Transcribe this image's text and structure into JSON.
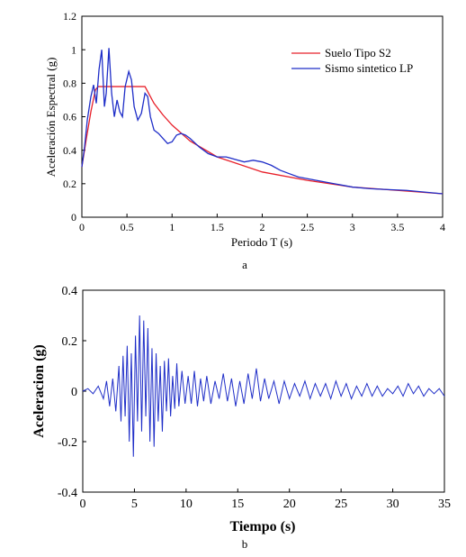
{
  "chart_data": [
    {
      "type": "line",
      "title": "",
      "xlabel": "Periodo T (s)",
      "ylabel": "Aceleración Espectral (g)",
      "xlim": [
        0,
        4
      ],
      "ylim": [
        0,
        1.2
      ],
      "xticks": [
        "0",
        "0.5",
        "1",
        "1.5",
        "2",
        "2.5",
        "3",
        "3.5",
        "4"
      ],
      "yticks": [
        "0",
        "0.2",
        "0.4",
        "0.6",
        "0.8",
        "1",
        "1.2"
      ],
      "panel_label": "a",
      "legend_position": "top-right",
      "series": [
        {
          "name": "Suelo Tipo S2",
          "color": "#e8202a",
          "x": [
            0,
            0.05,
            0.1,
            0.15,
            0.18,
            0.7,
            0.8,
            0.9,
            1.0,
            1.2,
            1.5,
            2.0,
            2.5,
            3.0,
            3.5,
            4.0
          ],
          "y": [
            0.3,
            0.47,
            0.63,
            0.76,
            0.78,
            0.78,
            0.68,
            0.61,
            0.55,
            0.455,
            0.36,
            0.27,
            0.22,
            0.18,
            0.16,
            0.14
          ]
        },
        {
          "name": "Sismo sintetico LP",
          "color": "#1f2ec8",
          "x": [
            0,
            0.03,
            0.06,
            0.1,
            0.13,
            0.16,
            0.19,
            0.22,
            0.25,
            0.27,
            0.3,
            0.33,
            0.36,
            0.39,
            0.42,
            0.45,
            0.48,
            0.52,
            0.55,
            0.58,
            0.62,
            0.66,
            0.7,
            0.73,
            0.76,
            0.8,
            0.85,
            0.9,
            0.95,
            1.0,
            1.05,
            1.1,
            1.15,
            1.2,
            1.3,
            1.4,
            1.5,
            1.6,
            1.7,
            1.8,
            1.9,
            2.0,
            2.1,
            2.2,
            2.3,
            2.4,
            2.5,
            2.6,
            2.7,
            2.8,
            2.9,
            3.0,
            3.2,
            3.4,
            3.6,
            3.8,
            4.0
          ],
          "y": [
            0.3,
            0.42,
            0.58,
            0.72,
            0.79,
            0.68,
            0.88,
            1.0,
            0.66,
            0.74,
            1.01,
            0.74,
            0.6,
            0.7,
            0.63,
            0.6,
            0.78,
            0.87,
            0.82,
            0.66,
            0.58,
            0.62,
            0.74,
            0.72,
            0.6,
            0.52,
            0.5,
            0.47,
            0.44,
            0.45,
            0.49,
            0.5,
            0.49,
            0.47,
            0.42,
            0.38,
            0.36,
            0.36,
            0.345,
            0.33,
            0.34,
            0.33,
            0.31,
            0.28,
            0.26,
            0.24,
            0.23,
            0.22,
            0.21,
            0.2,
            0.19,
            0.18,
            0.17,
            0.165,
            0.16,
            0.15,
            0.14
          ]
        }
      ]
    },
    {
      "type": "line",
      "title": "",
      "xlabel": "Tiempo (s)",
      "ylabel": "Aceleracion (g)",
      "xlim": [
        0,
        35
      ],
      "ylim": [
        -0.4,
        0.4
      ],
      "xticks": [
        "0",
        "5",
        "10",
        "15",
        "20",
        "25",
        "30",
        "35"
      ],
      "yticks": [
        "-0.4",
        "-0.2",
        "0",
        "0.2",
        "0.4"
      ],
      "panel_label": "b",
      "series": [
        {
          "name": "",
          "color": "#1f2ec8",
          "x": [
            0,
            0.5,
            1,
            1.5,
            2,
            2.3,
            2.6,
            2.9,
            3.2,
            3.5,
            3.7,
            3.9,
            4.1,
            4.3,
            4.5,
            4.7,
            4.9,
            5.1,
            5.3,
            5.5,
            5.7,
            5.9,
            6.1,
            6.3,
            6.5,
            6.7,
            6.9,
            7.1,
            7.3,
            7.5,
            7.7,
            7.9,
            8.1,
            8.3,
            8.5,
            8.7,
            8.9,
            9.1,
            9.3,
            9.6,
            9.9,
            10.2,
            10.5,
            10.8,
            11.1,
            11.4,
            11.7,
            12,
            12.4,
            12.8,
            13.2,
            13.6,
            14,
            14.4,
            14.8,
            15.2,
            15.6,
            16,
            16.4,
            16.8,
            17.2,
            17.6,
            18,
            18.5,
            19,
            19.5,
            20,
            20.5,
            21,
            21.5,
            22,
            22.5,
            23,
            23.5,
            24,
            24.5,
            25,
            25.5,
            26,
            26.5,
            27,
            27.5,
            28,
            28.5,
            29,
            29.5,
            30,
            30.5,
            31,
            31.5,
            32,
            32.5,
            33,
            33.5,
            34,
            34.5,
            35
          ],
          "y": [
            0,
            0.01,
            -0.01,
            0.02,
            -0.03,
            0.04,
            -0.06,
            0.05,
            -0.08,
            0.1,
            -0.12,
            0.14,
            -0.1,
            0.18,
            -0.2,
            0.15,
            -0.26,
            0.22,
            -0.12,
            0.3,
            -0.16,
            0.28,
            -0.1,
            0.25,
            -0.2,
            0.17,
            -0.22,
            0.15,
            -0.12,
            0.1,
            -0.16,
            0.12,
            -0.08,
            0.13,
            -0.1,
            0.06,
            -0.07,
            0.11,
            -0.06,
            0.08,
            -0.05,
            0.06,
            -0.05,
            0.08,
            -0.06,
            0.05,
            -0.04,
            0.06,
            -0.05,
            0.04,
            -0.03,
            0.07,
            -0.04,
            0.05,
            -0.06,
            0.04,
            -0.05,
            0.07,
            -0.03,
            0.09,
            -0.04,
            0.05,
            -0.03,
            0.04,
            -0.05,
            0.04,
            -0.03,
            0.03,
            -0.02,
            0.04,
            -0.03,
            0.03,
            -0.02,
            0.03,
            -0.03,
            0.04,
            -0.02,
            0.03,
            -0.03,
            0.02,
            -0.02,
            0.03,
            -0.02,
            0.02,
            -0.02,
            0.01,
            -0.01,
            0.02,
            -0.02,
            0.03,
            -0.01,
            0.02,
            -0.02,
            0.01,
            -0.01,
            0.01,
            -0.02
          ]
        }
      ]
    }
  ]
}
